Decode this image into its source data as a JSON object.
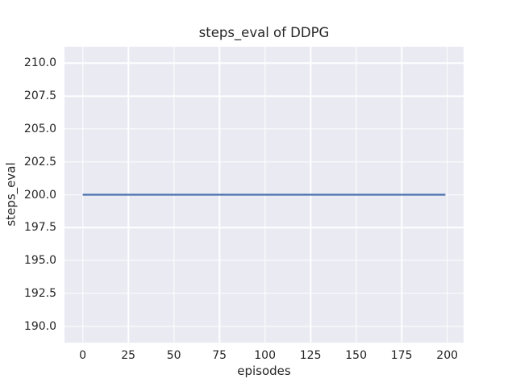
{
  "figure": {
    "background": "#ffffff"
  },
  "chart_data": {
    "type": "line",
    "title": "steps_eval of DDPG",
    "xlabel": "episodes",
    "ylabel": "steps_eval",
    "xlim": [
      -10,
      209
    ],
    "ylim": [
      188.75,
      211.25
    ],
    "grid": true,
    "legend": false,
    "style": {
      "plot_background": "#eaeaf2",
      "grid_color": "#ffffff",
      "text_color": "#262626"
    },
    "xticks": {
      "values": [
        0,
        25,
        50,
        75,
        100,
        125,
        150,
        175,
        200
      ],
      "labels": [
        "0",
        "25",
        "50",
        "75",
        "100",
        "125",
        "150",
        "175",
        "200"
      ]
    },
    "yticks": {
      "values": [
        190.0,
        192.5,
        195.0,
        197.5,
        200.0,
        202.5,
        205.0,
        207.5,
        210.0
      ],
      "labels": [
        "190.0",
        "192.5",
        "195.0",
        "197.5",
        "200.0",
        "202.5",
        "205.0",
        "207.5",
        "210.0"
      ]
    },
    "series": [
      {
        "name": "DDPG",
        "color": "#4c72b0",
        "linewidth": 2.2,
        "x": [
          0,
          199
        ],
        "y": [
          200,
          200
        ]
      }
    ]
  }
}
